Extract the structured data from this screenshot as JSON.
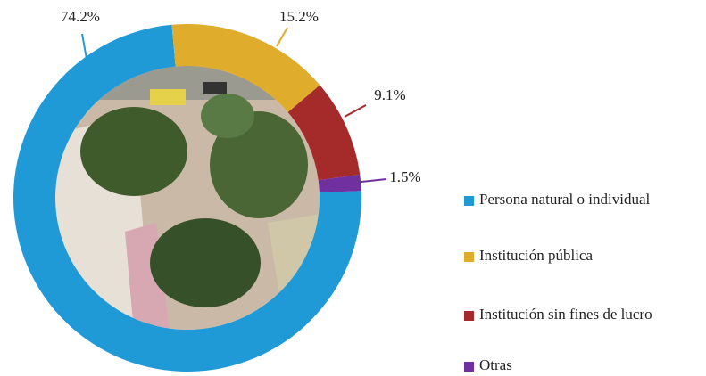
{
  "chart_data": {
    "type": "donut",
    "categories": [
      "Persona natural o individual",
      "Institución pública",
      "Institución sin fines de lucro",
      "Otras"
    ],
    "values": [
      74.2,
      15.2,
      9.1,
      1.5
    ],
    "value_labels": [
      "74.2%",
      "15.2%",
      "9.1%",
      "1.5%"
    ],
    "colors": [
      "#1f9ad6",
      "#e0ac2b",
      "#a52a2a",
      "#7030a0"
    ],
    "legend": "right"
  }
}
